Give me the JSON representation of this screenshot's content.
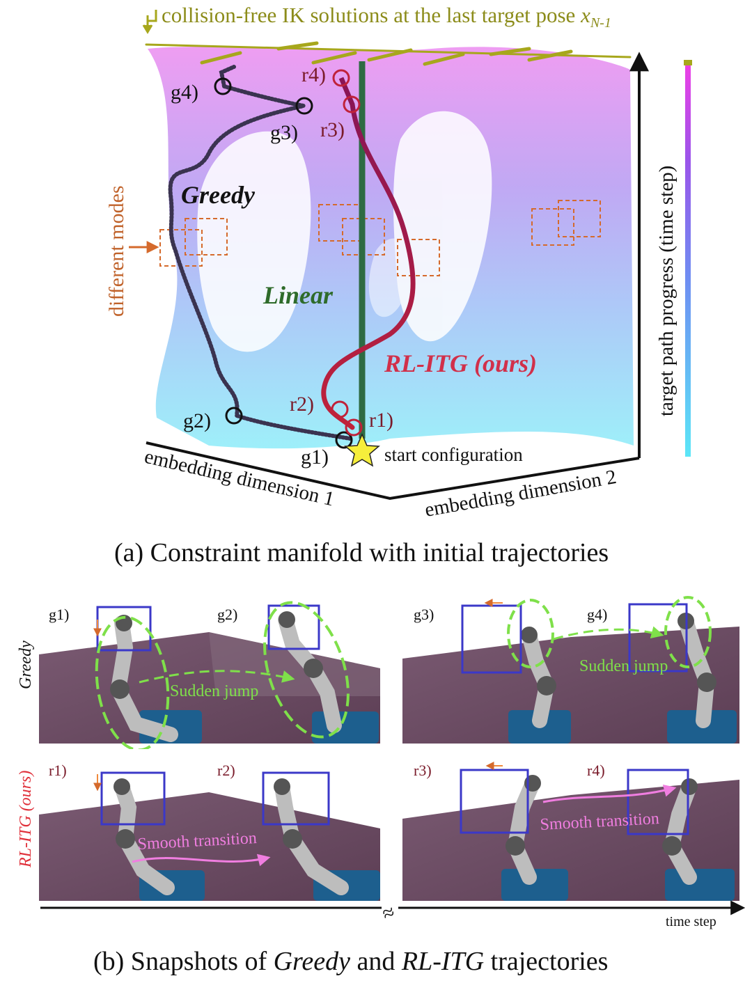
{
  "top_panel": {
    "top_note": "collision-free IK solutions at the last target pose ",
    "top_note_math": "x",
    "top_note_sub": "N-1",
    "labels": {
      "greedy": "Greedy",
      "linear": "Linear",
      "rl_itg": "RL-ITG (ours)",
      "different_modes": "different modes",
      "start": "start configuration",
      "axis1": "embedding dimension 1",
      "axis2": "embedding dimension 2",
      "axis3": "target path progress (time step)"
    },
    "points": {
      "g1": "g1)",
      "g2": "g2)",
      "g3": "g3)",
      "g4": "g4)",
      "r1": "r1)",
      "r2": "r2)",
      "r3": "r3)",
      "r4": "r4)"
    },
    "caption": "(a)  Constraint manifold with initial trajectories"
  },
  "bottom_panel": {
    "row_greedy": "Greedy",
    "row_rl": "RL-ITG (ours)",
    "snap_labels": [
      "g1)",
      "g2)",
      "g3)",
      "g4)",
      "r1)",
      "r2)",
      "r3)",
      "r4)"
    ],
    "sudden_jump": "Sudden jump",
    "smooth_transition": "Smooth transition",
    "time_axis": "time step",
    "axis_break": "≈",
    "caption_pre": "(b)  Snapshots of ",
    "caption_greedy": "Greedy",
    "caption_mid": " and ",
    "caption_rl": "RL-ITG",
    "caption_post": " trajectories"
  },
  "colors": {
    "greedy_path": "#3a3350",
    "rl_path": "#c0223a",
    "linear_path": "#2e6b43",
    "olive": "#a7a71c",
    "orange": "#d56a2c",
    "green_dash": "#7fe04a",
    "pink_arrow": "#f07ee0",
    "floor": "#6b4c62"
  }
}
